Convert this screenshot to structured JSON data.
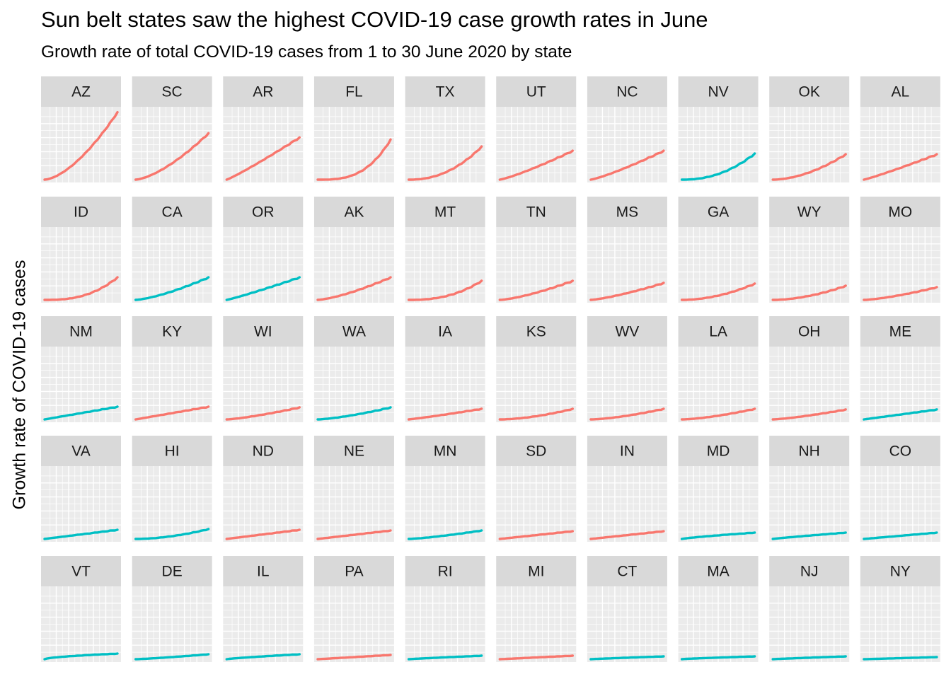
{
  "chart_data": {
    "type": "line",
    "title": "Sun belt states saw the highest COVID-19 case growth rates in June",
    "subtitle": "Growth rate of total COVID-19 cases from 1 to 30 June 2020 by state",
    "xlabel": "",
    "ylabel": "Growth rate of COVID-19 cases",
    "x_range": [
      1,
      30
    ],
    "y_range": [
      0,
      1
    ],
    "grid": true,
    "axis_ticks_shown": false,
    "legend": "none",
    "facet_columns": 10,
    "group_colors": {
      "red": "#F8766D",
      "teal": "#00BFC4"
    },
    "facets": [
      {
        "state": "AZ",
        "color": "red",
        "end": 0.96,
        "shape": 1.6
      },
      {
        "state": "SC",
        "color": "red",
        "end": 0.66,
        "shape": 1.5
      },
      {
        "state": "AR",
        "color": "red",
        "end": 0.6,
        "shape": 1.1
      },
      {
        "state": "FL",
        "color": "red",
        "end": 0.57,
        "shape": 3.0
      },
      {
        "state": "TX",
        "color": "red",
        "end": 0.47,
        "shape": 2.2
      },
      {
        "state": "UT",
        "color": "red",
        "end": 0.41,
        "shape": 1.2
      },
      {
        "state": "NC",
        "color": "red",
        "end": 0.41,
        "shape": 1.2
      },
      {
        "state": "NV",
        "color": "teal",
        "end": 0.37,
        "shape": 2.2
      },
      {
        "state": "OK",
        "color": "red",
        "end": 0.36,
        "shape": 1.8
      },
      {
        "state": "AL",
        "color": "red",
        "end": 0.36,
        "shape": 1.1
      },
      {
        "state": "ID",
        "color": "red",
        "end": 0.32,
        "shape": 2.6
      },
      {
        "state": "CA",
        "color": "teal",
        "end": 0.32,
        "shape": 1.4
      },
      {
        "state": "OR",
        "color": "teal",
        "end": 0.32,
        "shape": 1.1
      },
      {
        "state": "AK",
        "color": "red",
        "end": 0.32,
        "shape": 1.4
      },
      {
        "state": "MT",
        "color": "red",
        "end": 0.27,
        "shape": 2.4
      },
      {
        "state": "TN",
        "color": "red",
        "end": 0.27,
        "shape": 1.4
      },
      {
        "state": "MS",
        "color": "red",
        "end": 0.24,
        "shape": 1.3
      },
      {
        "state": "GA",
        "color": "red",
        "end": 0.23,
        "shape": 1.9
      },
      {
        "state": "WY",
        "color": "red",
        "end": 0.2,
        "shape": 1.8
      },
      {
        "state": "MO",
        "color": "red",
        "end": 0.18,
        "shape": 1.4
      },
      {
        "state": "NM",
        "color": "teal",
        "end": 0.18,
        "shape": 1.0
      },
      {
        "state": "KY",
        "color": "red",
        "end": 0.18,
        "shape": 1.0
      },
      {
        "state": "WI",
        "color": "red",
        "end": 0.17,
        "shape": 1.3
      },
      {
        "state": "WA",
        "color": "teal",
        "end": 0.17,
        "shape": 1.4
      },
      {
        "state": "IA",
        "color": "red",
        "end": 0.15,
        "shape": 1.1
      },
      {
        "state": "KS",
        "color": "red",
        "end": 0.15,
        "shape": 1.7
      },
      {
        "state": "WV",
        "color": "red",
        "end": 0.15,
        "shape": 1.5
      },
      {
        "state": "LA",
        "color": "red",
        "end": 0.15,
        "shape": 1.5
      },
      {
        "state": "OH",
        "color": "red",
        "end": 0.14,
        "shape": 1.3
      },
      {
        "state": "ME",
        "color": "teal",
        "end": 0.14,
        "shape": 1.0
      },
      {
        "state": "VA",
        "color": "teal",
        "end": 0.13,
        "shape": 1.0
      },
      {
        "state": "HI",
        "color": "teal",
        "end": 0.14,
        "shape": 1.8
      },
      {
        "state": "ND",
        "color": "red",
        "end": 0.13,
        "shape": 1.0
      },
      {
        "state": "NE",
        "color": "red",
        "end": 0.12,
        "shape": 1.0
      },
      {
        "state": "MN",
        "color": "teal",
        "end": 0.12,
        "shape": 1.3
      },
      {
        "state": "SD",
        "color": "red",
        "end": 0.11,
        "shape": 1.0
      },
      {
        "state": "IN",
        "color": "red",
        "end": 0.11,
        "shape": 1.0
      },
      {
        "state": "MD",
        "color": "teal",
        "end": 0.09,
        "shape": 0.8
      },
      {
        "state": "NH",
        "color": "teal",
        "end": 0.09,
        "shape": 0.9
      },
      {
        "state": "CO",
        "color": "teal",
        "end": 0.09,
        "shape": 1.0
      },
      {
        "state": "VT",
        "color": "teal",
        "end": 0.08,
        "shape": 0.6
      },
      {
        "state": "DE",
        "color": "teal",
        "end": 0.07,
        "shape": 1.2
      },
      {
        "state": "IL",
        "color": "teal",
        "end": 0.07,
        "shape": 0.8
      },
      {
        "state": "PA",
        "color": "red",
        "end": 0.06,
        "shape": 1.0
      },
      {
        "state": "RI",
        "color": "teal",
        "end": 0.05,
        "shape": 0.9
      },
      {
        "state": "MI",
        "color": "red",
        "end": 0.05,
        "shape": 1.0
      },
      {
        "state": "CT",
        "color": "teal",
        "end": 0.04,
        "shape": 0.9
      },
      {
        "state": "MA",
        "color": "teal",
        "end": 0.04,
        "shape": 0.8
      },
      {
        "state": "NJ",
        "color": "teal",
        "end": 0.04,
        "shape": 0.9
      },
      {
        "state": "NY",
        "color": "teal",
        "end": 0.03,
        "shape": 1.0
      }
    ]
  }
}
